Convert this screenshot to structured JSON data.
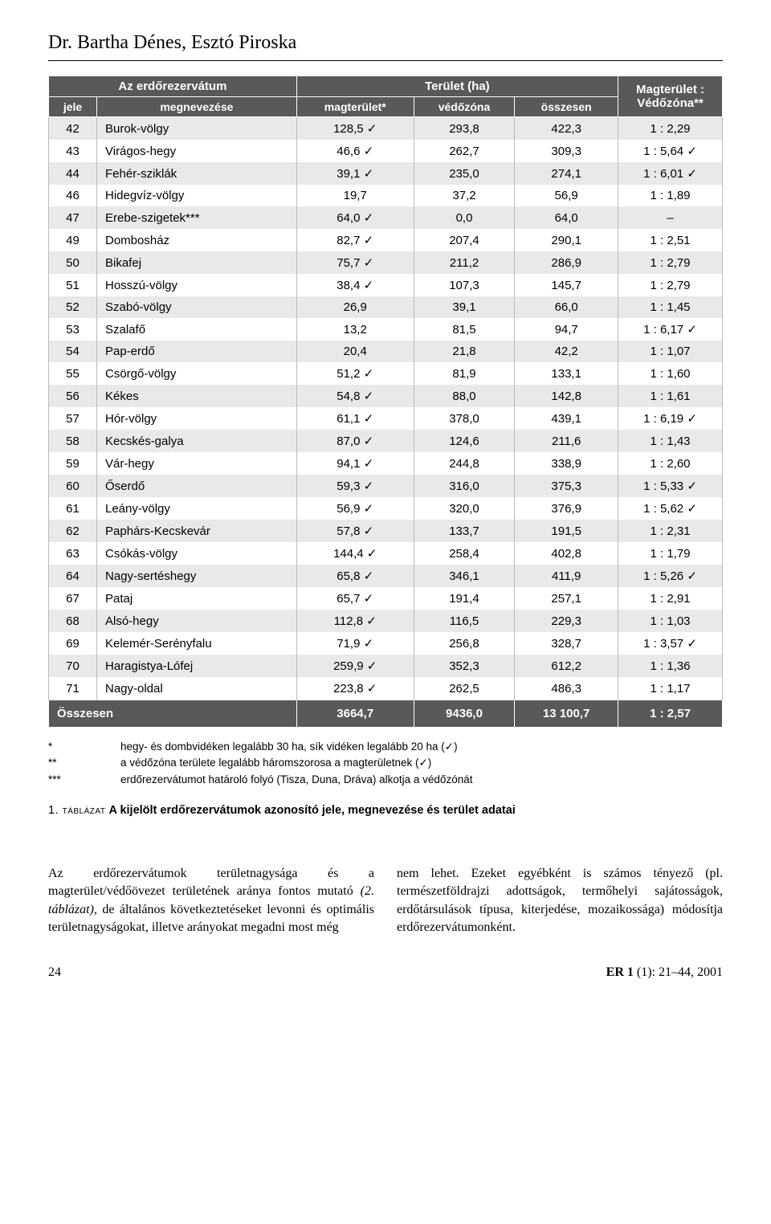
{
  "title": "Dr. Bartha Dénes, Esztó Piroska",
  "table": {
    "headers": {
      "group_left": "Az erdőrezervátum",
      "group_mid": "Terület (ha)",
      "ratio": "Magterület : Védőzóna**",
      "jele": "jele",
      "megnevezese": "megnevezése",
      "magterulet": "magterület*",
      "vedozona": "védőzóna",
      "osszesen": "összesen"
    },
    "rows": [
      {
        "id": "42",
        "name": "Burok-völgy",
        "mag": "128,5",
        "mag_check": true,
        "ved": "293,8",
        "tot": "422,3",
        "ratio": "1 : 2,29",
        "ratio_check": false
      },
      {
        "id": "43",
        "name": "Virágos-hegy",
        "mag": "46,6",
        "mag_check": true,
        "ved": "262,7",
        "tot": "309,3",
        "ratio": "1 : 5,64",
        "ratio_check": true
      },
      {
        "id": "44",
        "name": "Fehér-sziklák",
        "mag": "39,1",
        "mag_check": true,
        "ved": "235,0",
        "tot": "274,1",
        "ratio": "1 : 6,01",
        "ratio_check": true
      },
      {
        "id": "46",
        "name": "Hidegvíz-völgy",
        "mag": "19,7",
        "mag_check": false,
        "ved": "37,2",
        "tot": "56,9",
        "ratio": "1 : 1,89",
        "ratio_check": false
      },
      {
        "id": "47",
        "name": "Erebe-szigetek***",
        "mag": "64,0",
        "mag_check": true,
        "ved": "0,0",
        "tot": "64,0",
        "ratio": "–",
        "ratio_check": false
      },
      {
        "id": "49",
        "name": "Dombosház",
        "mag": "82,7",
        "mag_check": true,
        "ved": "207,4",
        "tot": "290,1",
        "ratio": "1 : 2,51",
        "ratio_check": false
      },
      {
        "id": "50",
        "name": "Bikafej",
        "mag": "75,7",
        "mag_check": true,
        "ved": "211,2",
        "tot": "286,9",
        "ratio": "1 : 2,79",
        "ratio_check": false
      },
      {
        "id": "51",
        "name": "Hosszú-völgy",
        "mag": "38,4",
        "mag_check": true,
        "ved": "107,3",
        "tot": "145,7",
        "ratio": "1 : 2,79",
        "ratio_check": false
      },
      {
        "id": "52",
        "name": "Szabó-völgy",
        "mag": "26,9",
        "mag_check": false,
        "ved": "39,1",
        "tot": "66,0",
        "ratio": "1 : 1,45",
        "ratio_check": false
      },
      {
        "id": "53",
        "name": "Szalafő",
        "mag": "13,2",
        "mag_check": false,
        "ved": "81,5",
        "tot": "94,7",
        "ratio": "1 : 6,17",
        "ratio_check": true
      },
      {
        "id": "54",
        "name": "Pap-erdő",
        "mag": "20,4",
        "mag_check": false,
        "ved": "21,8",
        "tot": "42,2",
        "ratio": "1 : 1,07",
        "ratio_check": false
      },
      {
        "id": "55",
        "name": "Csörgő-völgy",
        "mag": "51,2",
        "mag_check": true,
        "ved": "81,9",
        "tot": "133,1",
        "ratio": "1 : 1,60",
        "ratio_check": false
      },
      {
        "id": "56",
        "name": "Kékes",
        "mag": "54,8",
        "mag_check": true,
        "ved": "88,0",
        "tot": "142,8",
        "ratio": "1 : 1,61",
        "ratio_check": false
      },
      {
        "id": "57",
        "name": "Hór-völgy",
        "mag": "61,1",
        "mag_check": true,
        "ved": "378,0",
        "tot": "439,1",
        "ratio": "1 : 6,19",
        "ratio_check": true
      },
      {
        "id": "58",
        "name": "Kecskés-galya",
        "mag": "87,0",
        "mag_check": true,
        "ved": "124,6",
        "tot": "211,6",
        "ratio": "1 : 1,43",
        "ratio_check": false
      },
      {
        "id": "59",
        "name": "Vár-hegy",
        "mag": "94,1",
        "mag_check": true,
        "ved": "244,8",
        "tot": "338,9",
        "ratio": "1 : 2,60",
        "ratio_check": false
      },
      {
        "id": "60",
        "name": "Őserdő",
        "mag": "59,3",
        "mag_check": true,
        "ved": "316,0",
        "tot": "375,3",
        "ratio": "1 : 5,33",
        "ratio_check": true
      },
      {
        "id": "61",
        "name": "Leány-völgy",
        "mag": "56,9",
        "mag_check": true,
        "ved": "320,0",
        "tot": "376,9",
        "ratio": "1 : 5,62",
        "ratio_check": true
      },
      {
        "id": "62",
        "name": "Paphárs-Kecskevár",
        "mag": "57,8",
        "mag_check": true,
        "ved": "133,7",
        "tot": "191,5",
        "ratio": "1 : 2,31",
        "ratio_check": false
      },
      {
        "id": "63",
        "name": "Csókás-völgy",
        "mag": "144,4",
        "mag_check": true,
        "ved": "258,4",
        "tot": "402,8",
        "ratio": "1 : 1,79",
        "ratio_check": false
      },
      {
        "id": "64",
        "name": "Nagy-sertéshegy",
        "mag": "65,8",
        "mag_check": true,
        "ved": "346,1",
        "tot": "411,9",
        "ratio": "1 : 5,26",
        "ratio_check": true
      },
      {
        "id": "67",
        "name": "Pataj",
        "mag": "65,7",
        "mag_check": true,
        "ved": "191,4",
        "tot": "257,1",
        "ratio": "1 : 2,91",
        "ratio_check": false
      },
      {
        "id": "68",
        "name": "Alsó-hegy",
        "mag": "112,8",
        "mag_check": true,
        "ved": "116,5",
        "tot": "229,3",
        "ratio": "1 : 1,03",
        "ratio_check": false
      },
      {
        "id": "69",
        "name": "Kelemér-Serényfalu",
        "mag": "71,9",
        "mag_check": true,
        "ved": "256,8",
        "tot": "328,7",
        "ratio": "1 : 3,57",
        "ratio_check": true
      },
      {
        "id": "70",
        "name": "Haragistya-Lófej",
        "mag": "259,9",
        "mag_check": true,
        "ved": "352,3",
        "tot": "612,2",
        "ratio": "1 : 1,36",
        "ratio_check": false
      },
      {
        "id": "71",
        "name": "Nagy-oldal",
        "mag": "223,8",
        "mag_check": true,
        "ved": "262,5",
        "tot": "486,3",
        "ratio": "1 : 1,17",
        "ratio_check": false
      }
    ],
    "totals": {
      "label": "Összesen",
      "mag": "3664,7",
      "ved": "9436,0",
      "tot": "13 100,7",
      "ratio": "1 : 2,57"
    }
  },
  "footnotes": [
    {
      "mark": "*",
      "text": "hegy- és dombvidéken legalább 30 ha, sík vidéken legalább 20 ha (✓)"
    },
    {
      "mark": "**",
      "text": "a védőzóna területe legalább háromszorosa a magterületnek (✓)"
    },
    {
      "mark": "***",
      "text": "erdőrezervátumot határoló folyó (Tisza, Duna, Dráva) alkotja a védőzónát"
    }
  ],
  "caption": {
    "lead": "1. táblázat",
    "bold": "A kijelölt erdőrezervátumok azonosító jele, megnevezése és terület adatai"
  },
  "body": {
    "left": "Az erdőrezervátumok területnagysága és a magterület/védőövezet területének aránya fontos mutató (2. táblázat), de általános következtetéseket levonni és optimális területnagyságokat, illetve arányokat megadni most még",
    "right": "nem lehet. Ezeket egyébként is számos tényező (pl. természetföldrajzi adottságok, termőhelyi sajátosságok, erdőtársulások típusa, kiterjedése, mozaikossága) módosítja erdőrezervátumonként."
  },
  "footer": {
    "page": "24",
    "journal_bold": "ER 1",
    "journal_rest": " (1): 21–44, 2001"
  },
  "check_glyph": "✓"
}
